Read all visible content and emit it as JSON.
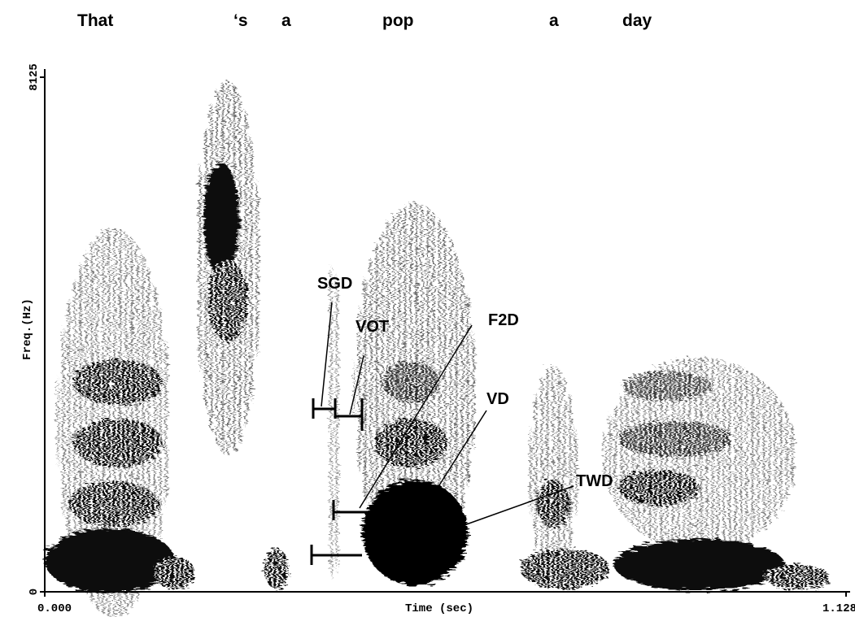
{
  "chart_data": {
    "type": "spectrogram",
    "words": [
      "That",
      "‘s",
      "a",
      "pop",
      "a",
      "day"
    ],
    "annotations": [
      "SGD",
      "VOT",
      "F2D",
      "VD",
      "TWD"
    ],
    "xlabel": "Time (sec)",
    "ylabel": "Freq.(Hz)",
    "xlim": [
      0,
      1.128
    ],
    "xticks": [
      {
        "value": 0,
        "label": "0.000"
      },
      {
        "value": 1.128,
        "label": "1.128"
      }
    ],
    "ylim": [
      0,
      8125
    ],
    "yticks": [
      0,
      8125
    ]
  }
}
